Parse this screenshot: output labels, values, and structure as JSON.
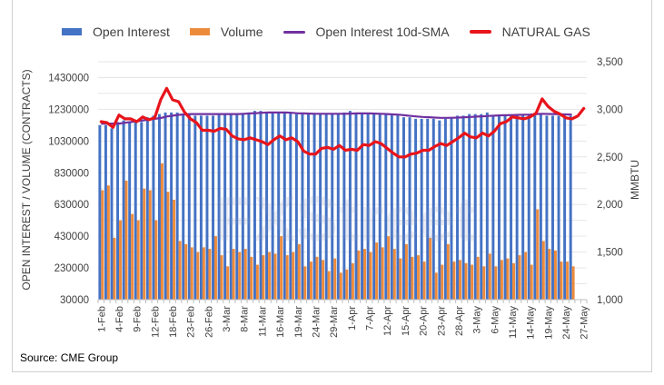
{
  "chart_data": {
    "type": "bar",
    "legend": {
      "position": "top",
      "entries": [
        {
          "label": "Open Interest",
          "kind": "bar",
          "color": "#4472C4"
        },
        {
          "label": "Volume",
          "kind": "bar",
          "color": "#ED8B3C"
        },
        {
          "label": "Open Interest 10d-SMA",
          "kind": "line",
          "color": "#7030A0"
        },
        {
          "label": "NATURAL GAS",
          "kind": "line",
          "color": "#E8141B"
        }
      ]
    },
    "ylabel_left": "OPEN INTEREST / VOLUME (CONTRACTS)",
    "ylabel_right": "MMBTU",
    "ylim_left": [
      30000,
      1530000
    ],
    "ylim_right": [
      1000,
      3500
    ],
    "yticks_left": [
      "30000",
      "230000",
      "430000",
      "630000",
      "830000",
      "1030000",
      "1230000",
      "1430000"
    ],
    "yticks_left_values": [
      30000,
      230000,
      430000,
      630000,
      830000,
      1030000,
      1230000,
      1430000
    ],
    "yticks_right": [
      "1,000",
      "1,500",
      "2,000",
      "2,500",
      "3,000",
      "3,500"
    ],
    "yticks_right_values": [
      1000,
      1500,
      2000,
      2500,
      3000,
      3500
    ],
    "xtick_labels": [
      "1-Feb",
      "4-Feb",
      "9-Feb",
      "12-Feb",
      "18-Feb",
      "23-Feb",
      "26-Feb",
      "3-Mar",
      "8-Mar",
      "11-Mar",
      "16-Mar",
      "19-Mar",
      "24-Mar",
      "29-Mar",
      "1-Apr",
      "7-Apr",
      "12-Apr",
      "15-Apr",
      "20-Apr",
      "23-Apr",
      "28-Apr",
      "3-May",
      "6-May",
      "11-May",
      "14-May",
      "19-May",
      "24-May",
      "27-May"
    ],
    "tick_every": 3,
    "num_categories": 82,
    "series": [
      {
        "name": "Open Interest",
        "values": [
          1130000,
          1130000,
          1110000,
          1150000,
          1160000,
          1150000,
          1160000,
          1150000,
          1180000,
          1190000,
          1200000,
          1210000,
          1210000,
          1210000,
          1200000,
          1200000,
          1190000,
          1190000,
          1190000,
          1190000,
          1200000,
          1200000,
          1200000,
          1200000,
          1200000,
          1210000,
          1220000,
          1220000,
          1210000,
          1210000,
          1210000,
          1210000,
          1210000,
          1200000,
          1200000,
          1200000,
          1200000,
          1200000,
          1200000,
          1200000,
          1200000,
          1210000,
          1220000,
          1210000,
          1210000,
          1200000,
          1200000,
          1200000,
          1200000,
          1200000,
          1200000,
          1180000,
          1180000,
          1170000,
          1170000,
          1170000,
          1170000,
          1160000,
          1170000,
          1180000,
          1190000,
          1190000,
          1200000,
          1200000,
          1200000,
          1210000,
          1190000,
          1190000,
          1190000,
          1190000,
          1190000,
          1200000,
          1200000,
          1200000,
          1200000,
          1190000,
          1190000,
          1190000,
          1190000,
          1190000,
          null,
          null
        ]
      },
      {
        "name": "Volume",
        "values": [
          720000,
          750000,
          420000,
          530000,
          780000,
          570000,
          530000,
          730000,
          720000,
          530000,
          890000,
          710000,
          660000,
          400000,
          380000,
          360000,
          330000,
          360000,
          350000,
          430000,
          310000,
          240000,
          350000,
          330000,
          350000,
          300000,
          250000,
          310000,
          330000,
          320000,
          430000,
          310000,
          330000,
          380000,
          240000,
          270000,
          300000,
          280000,
          210000,
          290000,
          200000,
          220000,
          260000,
          340000,
          350000,
          330000,
          390000,
          360000,
          430000,
          350000,
          290000,
          380000,
          300000,
          310000,
          270000,
          420000,
          200000,
          250000,
          380000,
          270000,
          280000,
          260000,
          250000,
          300000,
          240000,
          320000,
          240000,
          280000,
          290000,
          260000,
          310000,
          330000,
          250000,
          600000,
          400000,
          350000,
          340000,
          270000,
          270000,
          240000,
          null,
          null
        ]
      },
      {
        "name": "Open Interest 10d-SMA",
        "values": [
          1140000,
          1140000,
          1140000,
          1140000,
          1145000,
          1150000,
          1155000,
          1160000,
          1165000,
          1170000,
          1175000,
          1185000,
          1190000,
          1195000,
          1198000,
          1200000,
          1200000,
          1200000,
          1200000,
          1200000,
          1200000,
          1200000,
          1200000,
          1200000,
          1202000,
          1204000,
          1206000,
          1208000,
          1210000,
          1210000,
          1210000,
          1210000,
          1208000,
          1205000,
          1204000,
          1203000,
          1202000,
          1202000,
          1202000,
          1202000,
          1202000,
          1202000,
          1203000,
          1204000,
          1204000,
          1204000,
          1203000,
          1202000,
          1200000,
          1198000,
          1196000,
          1192000,
          1188000,
          1185000,
          1182000,
          1180000,
          1178000,
          1176000,
          1176000,
          1177000,
          1178000,
          1180000,
          1182000,
          1184000,
          1186000,
          1188000,
          1190000,
          1192000,
          1193000,
          1194000,
          1195000,
          1196000,
          1197000,
          1200000,
          1202000,
          1201000,
          1200000,
          1199000,
          1198000,
          1197000,
          null,
          null
        ]
      },
      {
        "name": "NATURAL GAS",
        "values": [
          2870,
          2860,
          2810,
          2940,
          2900,
          2900,
          2870,
          2920,
          2890,
          2910,
          3100,
          3220,
          3100,
          3080,
          2970,
          2900,
          2860,
          2780,
          2780,
          2770,
          2800,
          2790,
          2720,
          2690,
          2680,
          2700,
          2680,
          2660,
          2630,
          2680,
          2720,
          2680,
          2700,
          2660,
          2560,
          2530,
          2530,
          2590,
          2600,
          2580,
          2620,
          2570,
          2580,
          2570,
          2630,
          2620,
          2660,
          2640,
          2590,
          2540,
          2500,
          2500,
          2530,
          2540,
          2570,
          2570,
          2610,
          2640,
          2620,
          2660,
          2700,
          2750,
          2710,
          2700,
          2750,
          2720,
          2770,
          2850,
          2870,
          2920,
          2910,
          2900,
          2920,
          2960,
          3110,
          3030,
          2980,
          2950,
          2910,
          2900,
          2930,
          3010
        ]
      }
    ]
  },
  "footer": {
    "source": "Source: CME Group"
  },
  "watermark": "FXStreet"
}
